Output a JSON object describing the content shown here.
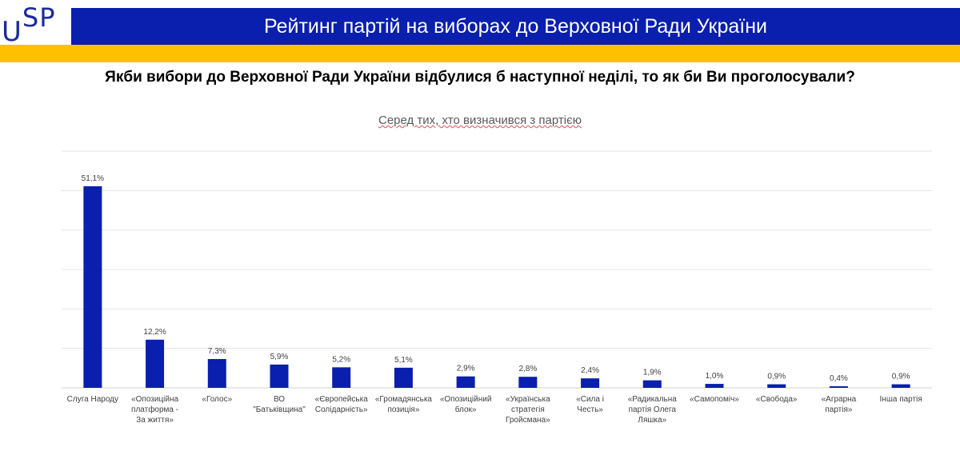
{
  "logo": "USP",
  "header": {
    "title": "Рейтинг партій на виборах до Верховної Ради України"
  },
  "question": "Якби вибори до Верховної Ради України відбулися б наступної неділі, то як би Ви проголосували?",
  "colors": {
    "brand_blue": "#0a1fad",
    "brand_yellow": "#ffc000",
    "bar": "#0a1fad"
  },
  "chart_data": {
    "type": "bar",
    "title": "Серед тих, хто визначився з партією",
    "categories": [
      "Слуга Народу",
      "«Опозиційна платформа - За життя»",
      "«Голос»",
      "ВО \"Батьківщина\"",
      "«Європейська Солідарність»",
      "«Громадянська позиція»",
      "«Опозиційний блок»",
      "«Українська стратегія Гройсмана»",
      "«Сила і Честь»",
      "«Радикальна партія Олега Ляшка»",
      "«Самопоміч»",
      "«Свобода»",
      "«Аграрна партія»",
      "Інша партія"
    ],
    "values": [
      51.1,
      12.2,
      7.3,
      5.9,
      5.2,
      5.1,
      2.9,
      2.8,
      2.4,
      1.9,
      1.0,
      0.9,
      0.4,
      0.9
    ],
    "data_labels": [
      "51,1%",
      "12,2%",
      "7,3%",
      "5,9%",
      "5,2%",
      "5,1%",
      "2,9%",
      "2,8%",
      "2,4%",
      "1,9%",
      "1,0%",
      "0,9%",
      "0,4%",
      "0,9%"
    ],
    "ylim": [
      0,
      60
    ],
    "grid": true,
    "axis_tick_labels_shown": false,
    "legend": "none"
  }
}
